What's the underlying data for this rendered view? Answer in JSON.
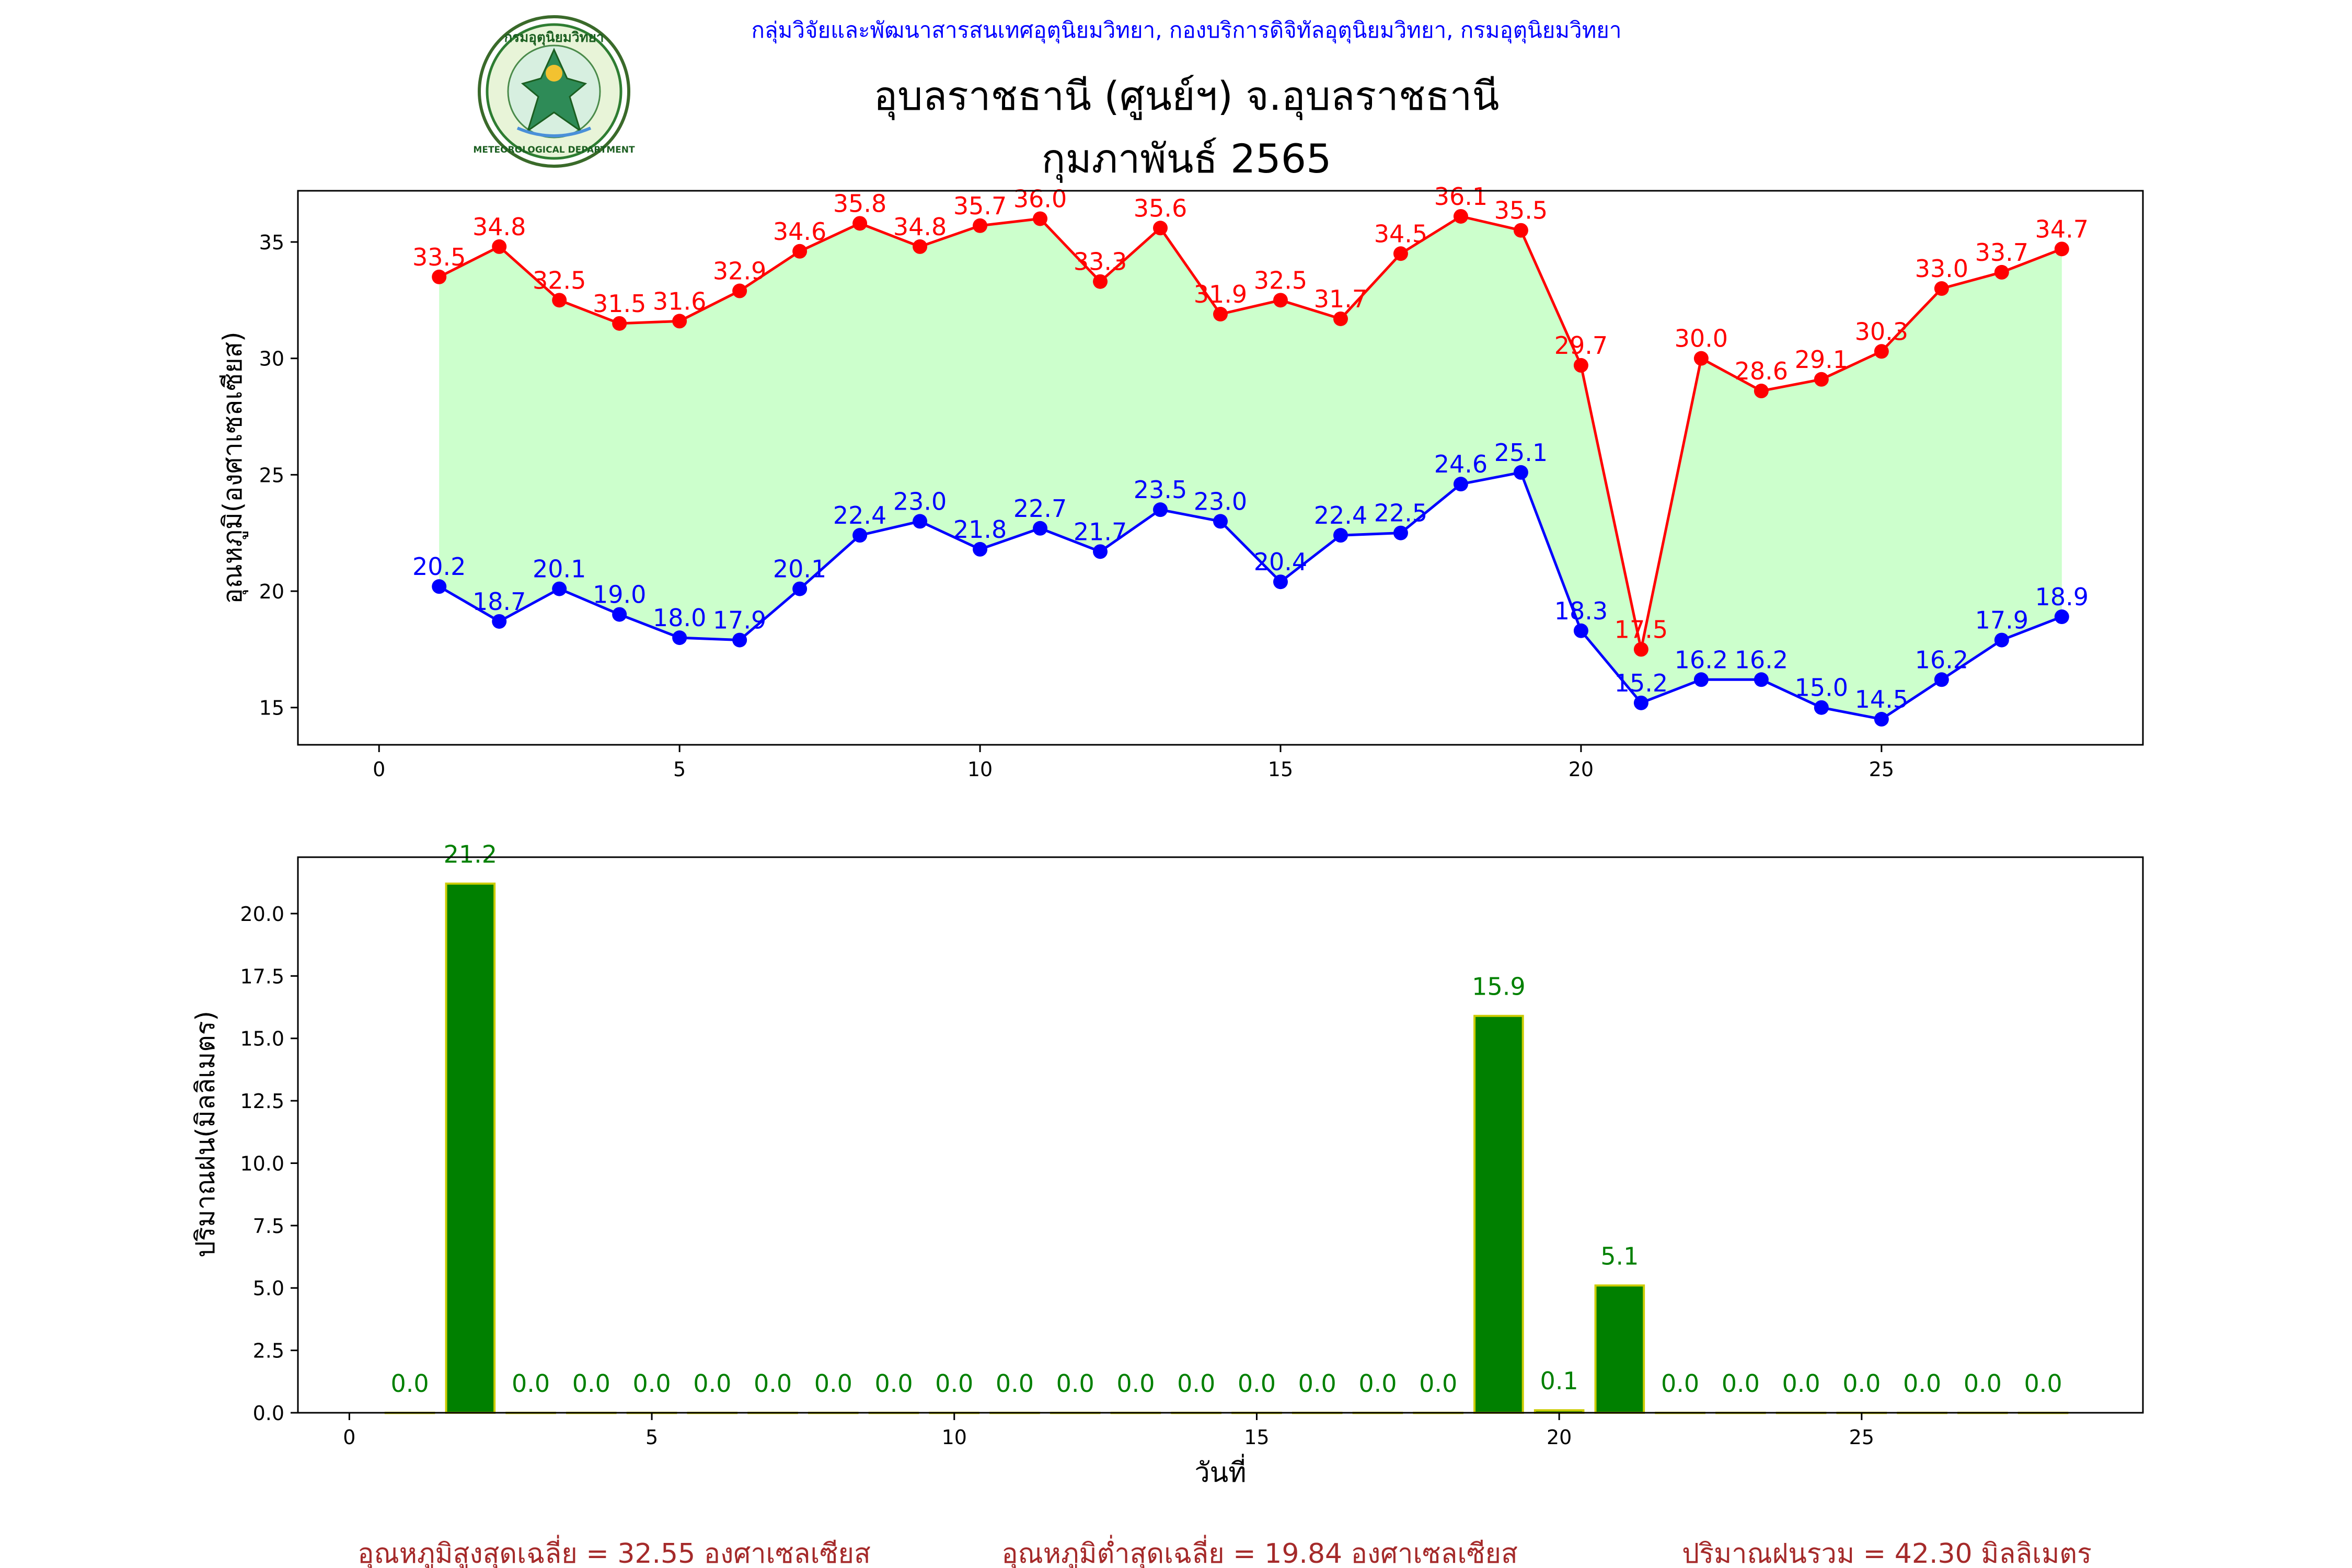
{
  "header": {
    "org_line": "กลุ่มวิจัยและพัฒนาสารสนเทศอุตุนิยมวิทยา, กองบริการดิจิทัลอุตุนิยมวิทยา, กรมอุตุนิยมวิทยา",
    "station": "อุบลราชธานี (ศูนย์ฯ) จ.อุบลราชธานี",
    "period": "กุมภาพันธ์ 2565",
    "logo_text_top": "กรมอุตุนิยมวิทยา",
    "logo_text_bottom": "METEOROLOGICAL DEPARTMENT"
  },
  "colors": {
    "max_line": "#ff0000",
    "min_line": "#0000ff",
    "fill": "#ccffcc",
    "bar_fill": "#008000",
    "bar_edge": "#cccc00",
    "bar_label": "#008000",
    "summary": "#a52a2a",
    "header_blue": "#0000ff"
  },
  "chart_data": [
    {
      "type": "line",
      "ylabel": "อุณหภูมิ(องศาเซลเซียส)",
      "xlabel": "",
      "xlim": [
        -1.35,
        29.35
      ],
      "ylim": [
        13.4,
        37.2
      ],
      "xticks": [
        0,
        5,
        10,
        15,
        20,
        25
      ],
      "yticks": [
        15,
        20,
        25,
        30,
        35
      ],
      "x": [
        1,
        2,
        3,
        4,
        5,
        6,
        7,
        8,
        9,
        10,
        11,
        12,
        13,
        14,
        15,
        16,
        17,
        18,
        19,
        20,
        21,
        22,
        23,
        24,
        25,
        26,
        27,
        28
      ],
      "series": [
        {
          "key": "max",
          "values": [
            33.5,
            34.8,
            32.5,
            31.5,
            31.6,
            32.9,
            34.6,
            35.8,
            34.8,
            35.7,
            36.0,
            33.3,
            35.6,
            31.9,
            32.5,
            31.7,
            34.5,
            36.1,
            35.5,
            29.7,
            17.5,
            30.0,
            28.6,
            29.1,
            30.3,
            33.0,
            33.7,
            34.7
          ]
        },
        {
          "key": "min",
          "values": [
            20.2,
            18.7,
            20.1,
            19.0,
            18.0,
            17.9,
            20.1,
            22.4,
            23.0,
            21.8,
            22.7,
            21.7,
            23.5,
            23.0,
            20.4,
            22.4,
            22.5,
            24.6,
            25.1,
            18.3,
            15.2,
            16.2,
            16.2,
            15.0,
            14.5,
            16.2,
            17.9,
            18.9
          ]
        }
      ],
      "grid": false
    },
    {
      "type": "bar",
      "ylabel": "ปริมาณฝน(มิลลิเมตร)",
      "xlabel": "วันที่",
      "xlim": [
        -0.85,
        29.65
      ],
      "ylim": [
        0,
        22.26
      ],
      "xticks": [
        0,
        5,
        10,
        15,
        20,
        25
      ],
      "yticks": [
        0.0,
        2.5,
        5.0,
        7.5,
        10.0,
        12.5,
        15.0,
        17.5,
        20.0
      ],
      "x": [
        1,
        2,
        3,
        4,
        5,
        6,
        7,
        8,
        9,
        10,
        11,
        12,
        13,
        14,
        15,
        16,
        17,
        18,
        19,
        20,
        21,
        22,
        23,
        24,
        25,
        26,
        27,
        28
      ],
      "values": [
        0.0,
        21.2,
        0.0,
        0.0,
        0.0,
        0.0,
        0.0,
        0.0,
        0.0,
        0.0,
        0.0,
        0.0,
        0.0,
        0.0,
        0.0,
        0.0,
        0.0,
        0.0,
        15.9,
        0.1,
        5.1,
        0.0,
        0.0,
        0.0,
        0.0,
        0.0,
        0.0,
        0.0
      ],
      "grid": false
    }
  ],
  "summary": {
    "max_avg": "อุณหภูมิสูงสุดเฉลี่ย = 32.55 องศาเซลเซียส",
    "min_avg": "อุณหภูมิต่ำสุดเฉลี่ย = 19.84 องศาเซลเซียส",
    "rain_total": "ปริมาณฝนรวม = 42.30 มิลลิเมตร"
  }
}
